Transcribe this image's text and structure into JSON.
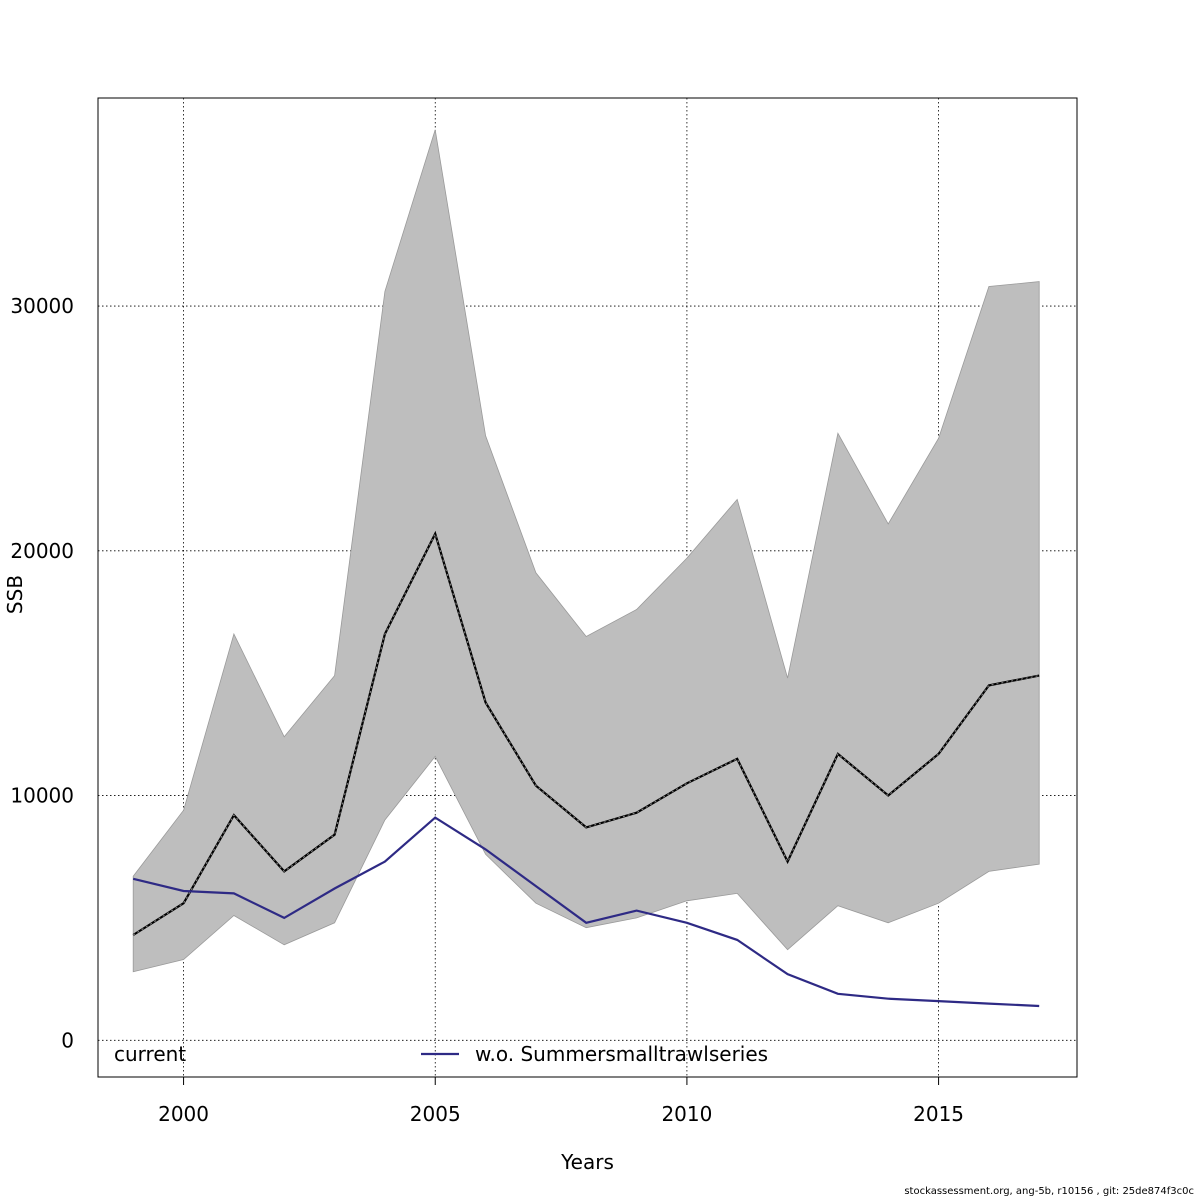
{
  "chart_data": {
    "type": "line",
    "xlabel": "Years",
    "ylabel": "SSB",
    "xlim": [
      1998.3,
      2017.75
    ],
    "ylim": [
      -1500,
      38500
    ],
    "x_ticks": [
      2000,
      2005,
      2010,
      2015
    ],
    "x_tick_labels": [
      "2000",
      "2005",
      "2010",
      "2015"
    ],
    "y_ticks": [
      0,
      10000,
      20000,
      30000
    ],
    "y_tick_labels": [
      "0",
      "10000",
      "20000",
      "30000"
    ],
    "grid": true,
    "x": [
      1999,
      2000,
      2001,
      2002,
      2003,
      2004,
      2005,
      2006,
      2007,
      2008,
      2009,
      2010,
      2011,
      2012,
      2013,
      2014,
      2015,
      2016,
      2017
    ],
    "band": {
      "color": "#bebebe",
      "lower": [
        2800,
        3300,
        5100,
        3900,
        4800,
        9000,
        11600,
        7600,
        5600,
        4600,
        5000,
        5700,
        6000,
        3700,
        5500,
        4800,
        5600,
        6900,
        7200
      ],
      "upper": [
        6700,
        9400,
        16600,
        12400,
        14900,
        30600,
        37200,
        24700,
        19100,
        16500,
        17600,
        19700,
        22100,
        14800,
        24800,
        21100,
        24600,
        30800,
        31000
      ]
    },
    "series": [
      {
        "name": "current",
        "color": "#000000",
        "style": "dashed",
        "values": [
          4300,
          5600,
          9200,
          6900,
          8400,
          16600,
          20700,
          13800,
          10400,
          8700,
          9300,
          10500,
          11500,
          7300,
          11700,
          10000,
          11700,
          14500,
          14900
        ]
      },
      {
        "name": "w.o. Summersmalltrawlseries",
        "color": "#2e2a85",
        "style": "solid",
        "values": [
          6600,
          6100,
          6000,
          5000,
          6200,
          7300,
          9100,
          7800,
          6300,
          4800,
          5300,
          4800,
          4100,
          2700,
          1900,
          1700,
          1600,
          1500,
          1400
        ]
      }
    ],
    "legend_position": "bottom"
  },
  "footer": "stockassessment.org, ang-5b, r10156 , git: 25de874f3c0c"
}
